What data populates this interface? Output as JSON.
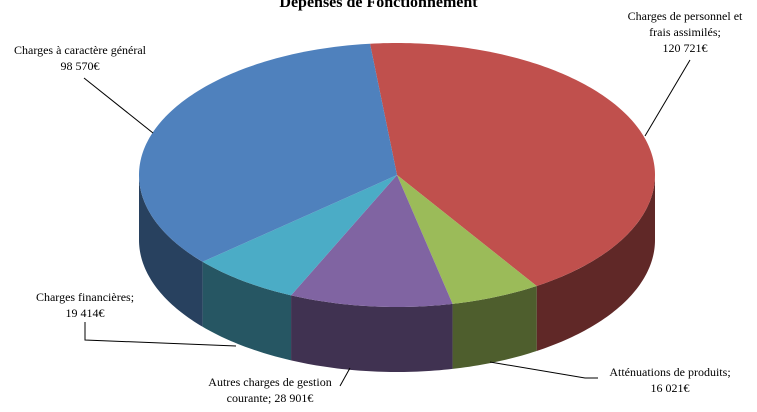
{
  "chart_data": {
    "type": "pie3d",
    "title": "Dépenses de Fonctionnement",
    "categories": [
      "Charges de personnel et frais assimilés;",
      "Atténuations de produits;",
      "Autres charges de gestion courante;",
      "Charges financières;",
      "Charges à caractère général"
    ],
    "values": [
      120721,
      16021,
      28901,
      19414,
      98570
    ],
    "value_labels": [
      "120 721€",
      "16 021€",
      "28 901€",
      "19 414€",
      "98 570€"
    ],
    "colors": [
      "#c0504d",
      "#9bbb59",
      "#8064a2",
      "#4bacc6",
      "#4f81bd"
    ]
  }
}
